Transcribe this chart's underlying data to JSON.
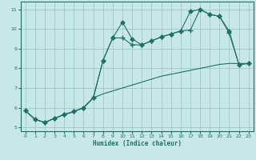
{
  "xlabel": "Humidex (Indice chaleur)",
  "xlim": [
    -0.5,
    23.5
  ],
  "ylim": [
    4.8,
    11.4
  ],
  "yticks": [
    5,
    6,
    7,
    8,
    9,
    10,
    11
  ],
  "xticks": [
    0,
    1,
    2,
    3,
    4,
    5,
    6,
    7,
    8,
    9,
    10,
    11,
    12,
    13,
    14,
    15,
    16,
    17,
    18,
    19,
    20,
    21,
    22,
    23
  ],
  "background_color": "#c8e8e8",
  "grid_color": "#a0c8c8",
  "line_color": "#1e7068",
  "lines": [
    {
      "x": [
        0,
        1,
        2,
        3,
        4,
        5,
        6,
        7,
        8,
        9,
        10,
        11,
        12,
        13,
        14,
        15,
        16,
        17,
        18,
        19,
        20,
        21,
        22,
        23
      ],
      "y": [
        5.85,
        5.4,
        5.25,
        5.45,
        5.65,
        5.8,
        6.0,
        6.5,
        8.4,
        9.55,
        10.35,
        9.5,
        9.2,
        9.4,
        9.6,
        9.75,
        9.9,
        10.9,
        11.0,
        10.75,
        10.65,
        9.9,
        8.2,
        8.25
      ],
      "marker": "D",
      "markersize": 2.5
    },
    {
      "x": [
        0,
        1,
        2,
        3,
        4,
        5,
        6,
        7,
        8,
        9,
        10,
        11,
        12,
        13,
        14,
        15,
        16,
        17,
        18,
        19,
        20,
        21,
        22,
        23
      ],
      "y": [
        5.85,
        5.4,
        5.25,
        5.45,
        5.65,
        5.8,
        6.0,
        6.5,
        8.4,
        9.55,
        9.55,
        9.2,
        9.2,
        9.4,
        9.6,
        9.75,
        9.9,
        9.95,
        11.0,
        10.75,
        10.65,
        9.8,
        8.2,
        8.25
      ],
      "marker": "+",
      "markersize": 4
    },
    {
      "x": [
        0,
        1,
        2,
        3,
        4,
        5,
        6,
        7,
        8,
        9,
        10,
        11,
        12,
        13,
        14,
        15,
        16,
        17,
        18,
        19,
        20,
        21,
        22,
        23
      ],
      "y": [
        5.85,
        5.4,
        5.25,
        5.45,
        5.65,
        5.8,
        6.0,
        6.5,
        6.7,
        6.85,
        7.0,
        7.15,
        7.3,
        7.45,
        7.6,
        7.7,
        7.8,
        7.9,
        8.0,
        8.1,
        8.2,
        8.25,
        8.25,
        8.25
      ],
      "marker": null,
      "markersize": 0
    }
  ]
}
